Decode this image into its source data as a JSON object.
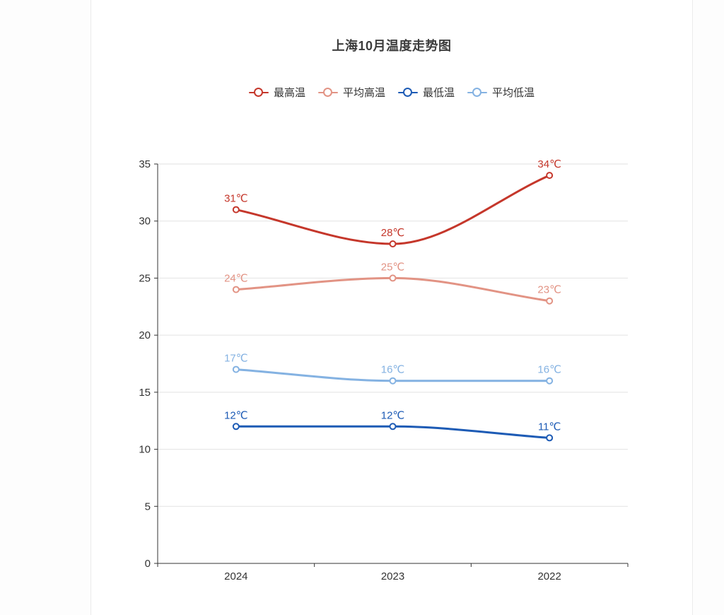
{
  "page": {
    "background_color": "#fdfdfd",
    "card_background_color": "#ffffff",
    "card_border_color": "#ebebeb"
  },
  "chart_data": {
    "type": "line",
    "title": "上海10月温度走势图",
    "title_color": "#3c3c3c",
    "unit": "℃",
    "categories": [
      "2024",
      "2023",
      "2022"
    ],
    "series": [
      {
        "name": "最高温",
        "values": [
          31,
          28,
          34
        ],
        "color": "#c5372b"
      },
      {
        "name": "平均高温",
        "values": [
          24,
          25,
          23
        ],
        "color": "#e29384"
      },
      {
        "name": "最低温",
        "values": [
          12,
          12,
          11
        ],
        "color": "#1d5bb5"
      },
      {
        "name": "平均低温",
        "values": [
          17,
          16,
          16
        ],
        "color": "#84b2e2"
      }
    ],
    "y_axis": {
      "min": 0,
      "max": 35,
      "interval": 5,
      "ticks": [
        0,
        5,
        10,
        15,
        20,
        25,
        30,
        35
      ]
    },
    "x_axis": {
      "labels": [
        "2024",
        "2023",
        "2022"
      ]
    },
    "legend_position": "top-center",
    "smooth": true,
    "grid": true,
    "grid_color": "#e2e2e2",
    "axis_color": "#333333",
    "axis_label_color": "#333333"
  }
}
